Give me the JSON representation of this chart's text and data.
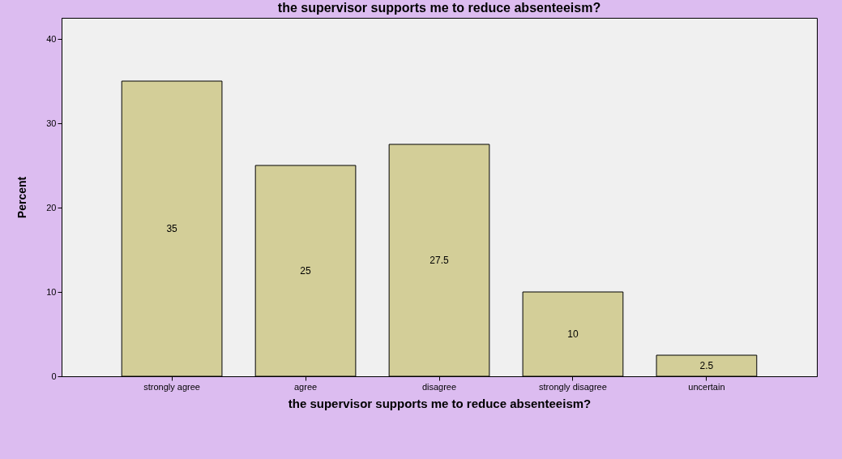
{
  "chart_data": {
    "type": "bar",
    "title": "the supervisor supports me to reduce absenteeism?",
    "xlabel": "the supervisor supports me to reduce absenteeism?",
    "ylabel": "Percent",
    "categories": [
      "strongly agree",
      "agree",
      "disagree",
      "strongly disagree",
      "uncertain"
    ],
    "values": [
      35,
      25,
      27.5,
      10,
      2.5
    ],
    "color": "#d3ce98",
    "ylim": [
      0,
      42.5
    ],
    "yticks": [
      0,
      10,
      20,
      30,
      40
    ],
    "grid": false,
    "data_labels": true
  }
}
